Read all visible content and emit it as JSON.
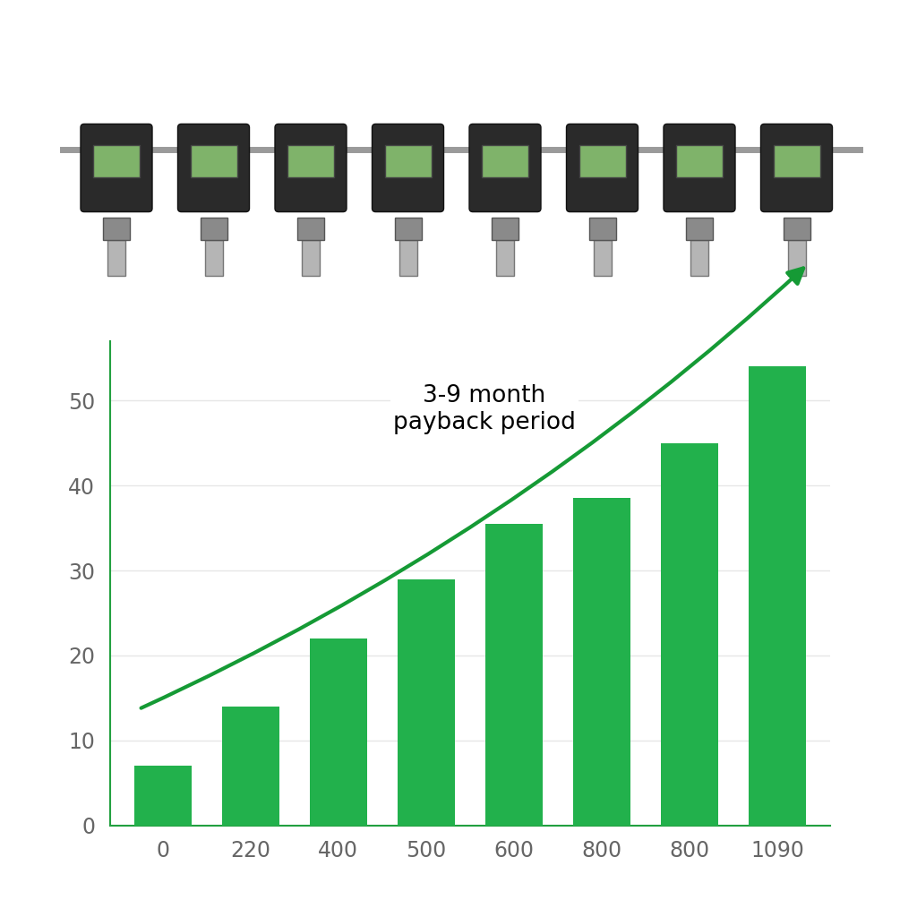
{
  "chart_data": {
    "type": "bar",
    "categories": [
      "0",
      "220",
      "400",
      "500",
      "600",
      "800",
      "800",
      "1090"
    ],
    "values": [
      7,
      14,
      22,
      29,
      35.5,
      38.5,
      45,
      54
    ],
    "color": "#22b14c",
    "ylim": [
      0,
      57
    ],
    "yticks": [
      0,
      10,
      20,
      30,
      40,
      50
    ],
    "grid": true,
    "annotation": "3-9 month\npayback period"
  }
}
